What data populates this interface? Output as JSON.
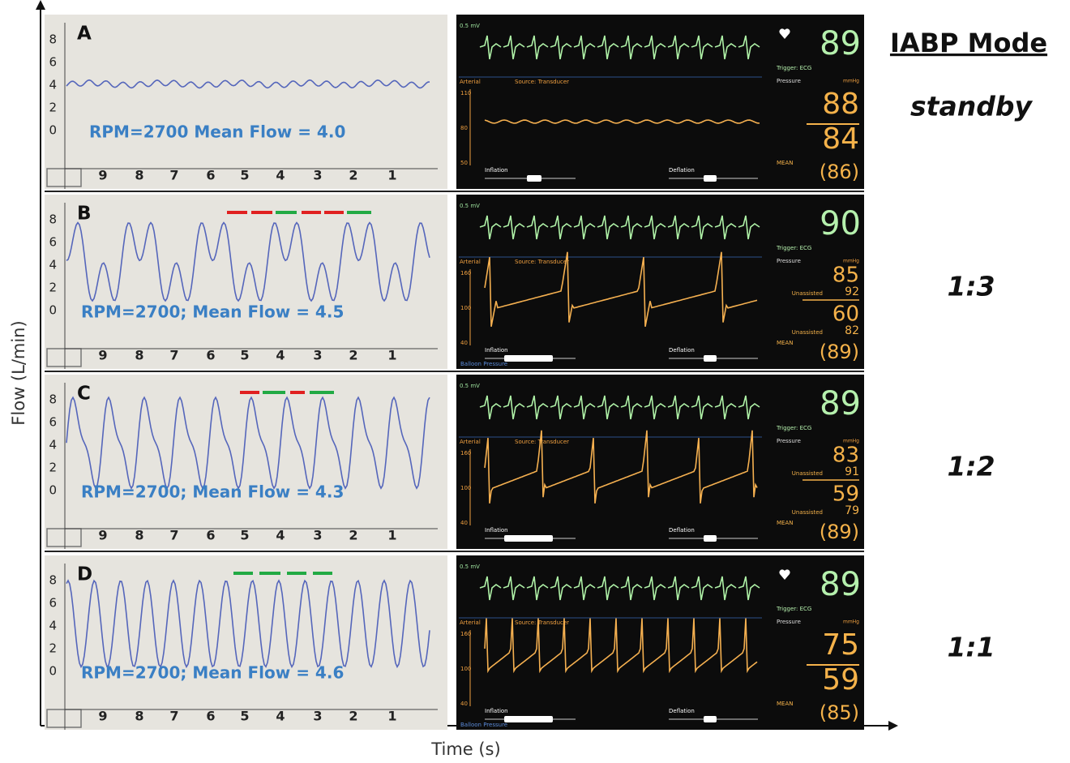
{
  "axes": {
    "y_label": "Flow (L/min)",
    "x_label": "Time (s)"
  },
  "mode_header": "IABP Mode",
  "panels": [
    {
      "letter": "A",
      "flow_label": "RPM=2700 Mean Flow = 4.0",
      "y_ticks": [
        8,
        6,
        4,
        2,
        0
      ],
      "x_ticks": [
        9,
        8,
        7,
        6,
        5,
        4,
        3,
        2,
        1
      ],
      "mode": "standby",
      "monitor": {
        "ecg_scale": "0.5 mV",
        "hr": 89,
        "trigger": "Trigger: ECG",
        "arterial": "Arterial",
        "source": "Source: Transducer",
        "pressure": "Pressure",
        "unit": "mmHg",
        "art_scale": [
          110,
          80,
          50
        ],
        "systolic": 88,
        "diastolic": 84,
        "mean_label": "MEAN",
        "mean": "(86)",
        "inflation": "Inflation",
        "deflation": "Deflation"
      }
    },
    {
      "letter": "B",
      "flow_label": "RPM=2700; Mean Flow = 4.5",
      "y_ticks": [
        8,
        6,
        4,
        2,
        0
      ],
      "x_ticks": [
        9,
        8,
        7,
        6,
        5,
        4,
        3,
        2,
        1
      ],
      "mode": "1:3",
      "monitor": {
        "ecg_scale": "0.5 mV",
        "hr": 90,
        "trigger": "Trigger: ECG",
        "arterial": "Arterial",
        "source": "Source: Transducer",
        "pressure": "Pressure",
        "unit": "mmHg",
        "art_scale": [
          160,
          100,
          40
        ],
        "systolic": 85,
        "unassisted_label": "Unassisted",
        "unassisted_systolic": 92,
        "diastolic": 60,
        "unassisted_diastolic": 82,
        "mean_label": "MEAN",
        "mean": "(89)",
        "inflation": "Inflation",
        "deflation": "Deflation",
        "balloon": "Balloon Pressure"
      }
    },
    {
      "letter": "C",
      "flow_label": "RPM=2700; Mean Flow = 4.3",
      "y_ticks": [
        8,
        6,
        4,
        2,
        0
      ],
      "x_ticks": [
        9,
        8,
        7,
        6,
        5,
        4,
        3,
        2,
        1
      ],
      "mode": "1:2",
      "monitor": {
        "ecg_scale": "0.5 mV",
        "hr": 89,
        "trigger": "Trigger: ECG",
        "arterial": "Arterial",
        "source": "Source: Transducer",
        "pressure": "Pressure",
        "unit": "mmHg",
        "art_scale": [
          160,
          100,
          40
        ],
        "systolic": 83,
        "unassisted_label": "Unassisted",
        "unassisted_systolic": 91,
        "diastolic": 59,
        "unassisted_diastolic": 79,
        "mean_label": "MEAN",
        "mean": "(89)",
        "inflation": "Inflation",
        "deflation": "Deflation"
      }
    },
    {
      "letter": "D",
      "flow_label": "RPM=2700; Mean Flow = 4.6",
      "y_ticks": [
        8,
        6,
        4,
        2,
        0
      ],
      "x_ticks": [
        9,
        8,
        7,
        6,
        5,
        4,
        3,
        2,
        1
      ],
      "mode": "1:1",
      "monitor": {
        "ecg_scale": "0.5 mV",
        "hr": 89,
        "trigger": "Trigger: ECG",
        "arterial": "Arterial",
        "source": "Source: Transducer",
        "pressure": "Pressure",
        "unit": "mmHg",
        "art_scale": [
          160,
          100,
          40
        ],
        "systolic": 75,
        "diastolic": 59,
        "mean_label": "MEAN",
        "mean": "(85)",
        "inflation": "Inflation",
        "deflation": "Deflation",
        "balloon": "Balloon Pressure"
      }
    }
  ]
}
